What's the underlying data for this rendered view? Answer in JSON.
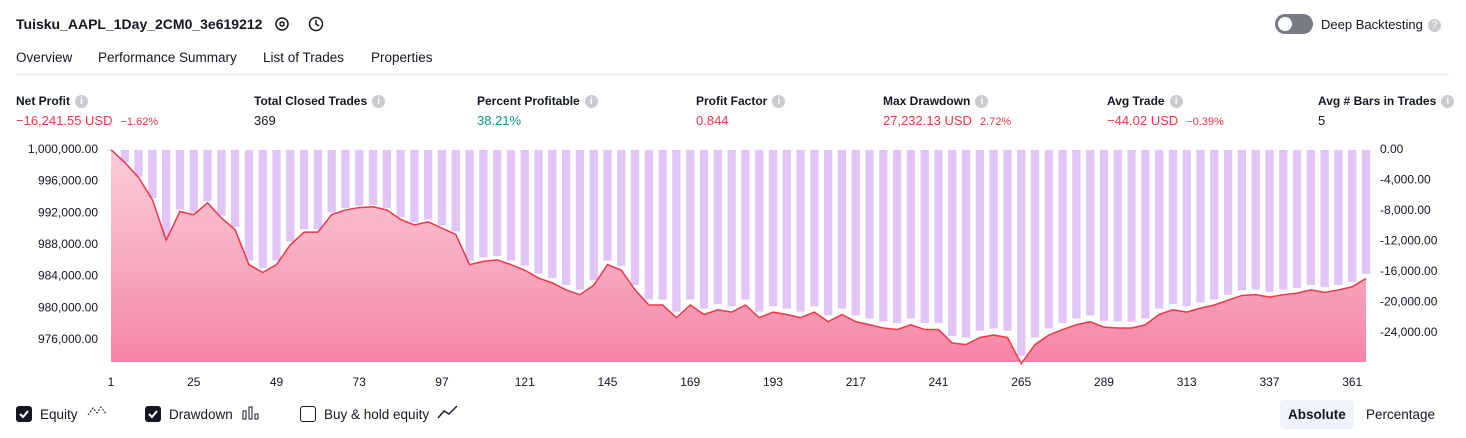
{
  "header": {
    "title": "Tuisku_AAPL_1Day_2CM0_3e619212",
    "toggle_label": "Deep Backtesting",
    "toggle_on": false
  },
  "tabs": {
    "items": [
      "Overview",
      "Performance Summary",
      "List of Trades",
      "Properties"
    ],
    "selected": 0
  },
  "metrics": [
    {
      "label": "Net Profit",
      "value": "−16,241.55 USD",
      "percent": "−1.62%",
      "color": "#f23645"
    },
    {
      "label": "Total Closed Trades",
      "value": "369",
      "color": "#131722"
    },
    {
      "label": "Percent Profitable",
      "value": "38.21%",
      "color": "#089981"
    },
    {
      "label": "Profit Factor",
      "value": "0.844",
      "color": "#f23645"
    },
    {
      "label": "Max Drawdown",
      "value": "27,232.13 USD",
      "percent": "2.72%",
      "color": "#f23645"
    },
    {
      "label": "Avg Trade",
      "value": "−44.02 USD",
      "percent": "−0.39%",
      "color": "#f23645"
    },
    {
      "label": "Avg # Bars in Trades",
      "value": "5",
      "color": "#131722"
    }
  ],
  "chart_data": {
    "type": "combo",
    "grid": false,
    "x": [
      1,
      5,
      9,
      13,
      17,
      21,
      25,
      29,
      33,
      37,
      41,
      45,
      49,
      53,
      57,
      61,
      65,
      69,
      73,
      77,
      81,
      85,
      89,
      93,
      97,
      101,
      105,
      109,
      113,
      117,
      121,
      125,
      129,
      133,
      137,
      141,
      145,
      149,
      153,
      157,
      161,
      165,
      169,
      173,
      177,
      181,
      185,
      189,
      193,
      197,
      201,
      205,
      209,
      213,
      217,
      221,
      225,
      229,
      233,
      237,
      241,
      245,
      249,
      253,
      257,
      261,
      265,
      269,
      273,
      277,
      281,
      285,
      289,
      293,
      297,
      301,
      305,
      309,
      313,
      317,
      321,
      325,
      329,
      333,
      337,
      341,
      345,
      349,
      353,
      357,
      361,
      365
    ],
    "xlim": [
      1,
      365
    ],
    "xticks": [
      1,
      25,
      49,
      73,
      97,
      121,
      145,
      169,
      193,
      217,
      241,
      265,
      289,
      313,
      337,
      361
    ],
    "ylim": [
      973200,
      1000600
    ],
    "yticks": [
      {
        "value": 1000000,
        "label": "1,000,000.00"
      },
      {
        "value": 996000,
        "label": "996,000.00"
      },
      {
        "value": 992000,
        "label": "992,000.00"
      },
      {
        "value": 988000,
        "label": "988,000.00"
      },
      {
        "value": 984000,
        "label": "984,000.00"
      },
      {
        "value": 980000,
        "label": "980,000.00"
      },
      {
        "value": 976000,
        "label": "976,000.00"
      }
    ],
    "y2lim": [
      -27800,
      650
    ],
    "y2ticks": [
      {
        "value": 0,
        "label": "0.00"
      },
      {
        "value": -4000,
        "label": "-4,000.00"
      },
      {
        "value": -8000,
        "label": "-8,000.00"
      },
      {
        "value": -12000,
        "label": "-12,000.00"
      },
      {
        "value": -16000,
        "label": "-16,000.00"
      },
      {
        "value": -20000,
        "label": "-20,000.00"
      },
      {
        "value": -24000,
        "label": "-24,000.00"
      }
    ],
    "series": [
      {
        "name": "Equity",
        "type": "line",
        "color": "#f23645",
        "values": [
          1000000,
          998400,
          996500,
          993700,
          988600,
          992200,
          991800,
          993300,
          991400,
          989900,
          985500,
          984500,
          985500,
          988000,
          989600,
          989600,
          991800,
          992400,
          992700,
          992800,
          992400,
          991200,
          990500,
          990900,
          990100,
          989300,
          985500,
          985900,
          986100,
          985500,
          984800,
          983800,
          983200,
          982300,
          981700,
          982900,
          985500,
          984800,
          982300,
          980400,
          980400,
          978800,
          980400,
          979200,
          979800,
          979500,
          980400,
          978800,
          979500,
          979200,
          978800,
          979500,
          978300,
          979200,
          978300,
          977900,
          977500,
          977300,
          977900,
          977300,
          977300,
          975600,
          975400,
          976300,
          976600,
          976300,
          973000,
          975400,
          976600,
          977300,
          977900,
          978300,
          977600,
          977500,
          977500,
          977900,
          979200,
          979800,
          979500,
          980000,
          980400,
          981000,
          981600,
          981700,
          981400,
          981700,
          981900,
          982300,
          982000,
          982300,
          982700,
          983758
        ]
      },
      {
        "name": "Drawdown",
        "type": "bar",
        "axis": "y2",
        "color": "#cf9ff2",
        "values": [
          0,
          -1600,
          -3500,
          -6300,
          -11400,
          -7800,
          -8200,
          -6700,
          -8600,
          -10100,
          -14500,
          -15500,
          -14500,
          -12000,
          -10400,
          -10400,
          -8200,
          -7600,
          -7300,
          -7200,
          -7600,
          -8800,
          -9500,
          -9100,
          -9900,
          -10700,
          -14500,
          -14100,
          -13900,
          -14500,
          -15200,
          -16200,
          -16800,
          -17700,
          -18300,
          -17100,
          -14500,
          -15200,
          -17700,
          -19600,
          -19600,
          -21200,
          -19600,
          -20800,
          -20200,
          -20500,
          -19600,
          -21200,
          -20500,
          -20800,
          -21200,
          -20500,
          -21700,
          -20800,
          -21700,
          -22100,
          -22500,
          -22700,
          -22100,
          -22700,
          -22700,
          -24400,
          -24600,
          -23700,
          -23400,
          -23700,
          -27000,
          -24600,
          -23400,
          -22700,
          -22100,
          -21700,
          -22400,
          -22500,
          -22500,
          -22100,
          -20800,
          -20200,
          -20500,
          -20000,
          -19600,
          -19000,
          -18400,
          -18300,
          -18600,
          -18300,
          -18100,
          -17700,
          -18000,
          -17700,
          -17300,
          -16242
        ]
      }
    ]
  },
  "legend": {
    "options": [
      {
        "label": "Equity",
        "checked": true
      },
      {
        "label": "Drawdown",
        "checked": true
      },
      {
        "label": "Buy & hold equity",
        "checked": false
      }
    ]
  },
  "scale_buttons": {
    "items": [
      "Absolute",
      "Percentage"
    ],
    "selected": 0
  }
}
